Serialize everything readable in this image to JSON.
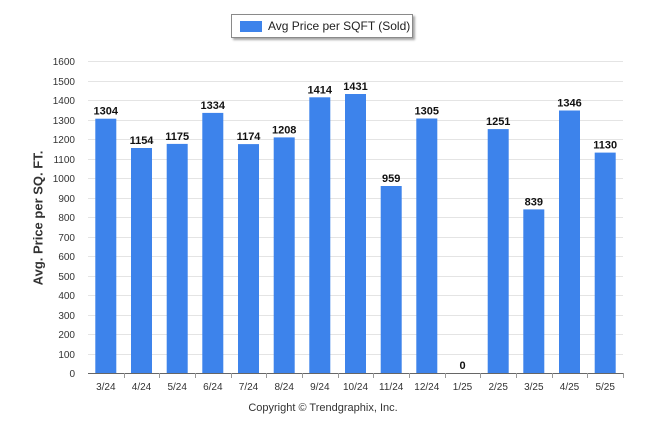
{
  "legend": {
    "label": "Avg Price per SQFT (Sold)"
  },
  "footer": {
    "copyright": "Copyright © Trendgraphix, Inc."
  },
  "colors": {
    "bar": "#3d83eb",
    "grid": "#e4e4e4",
    "axis": "#666666"
  },
  "chart_data": {
    "type": "bar",
    "categories": [
      "3/24",
      "4/24",
      "5/24",
      "6/24",
      "7/24",
      "8/24",
      "9/24",
      "10/24",
      "11/24",
      "12/24",
      "1/25",
      "2/25",
      "3/25",
      "4/25",
      "5/25"
    ],
    "series": [
      {
        "name": "Avg Price per SQFT (Sold)",
        "values": [
          1304,
          1154,
          1175,
          1334,
          1174,
          1208,
          1414,
          1431,
          959,
          1305,
          0,
          1251,
          839,
          1346,
          1130
        ]
      }
    ],
    "ylabel": "Avg. Price per SQ. FT.",
    "xlabel": "",
    "ylim": [
      0,
      1600
    ],
    "yticks": [
      0,
      100,
      200,
      300,
      400,
      500,
      600,
      700,
      800,
      900,
      1000,
      1100,
      1200,
      1300,
      1400,
      1500,
      1600
    ],
    "grid": true,
    "legend_position": "top-center",
    "data_labels": true
  }
}
